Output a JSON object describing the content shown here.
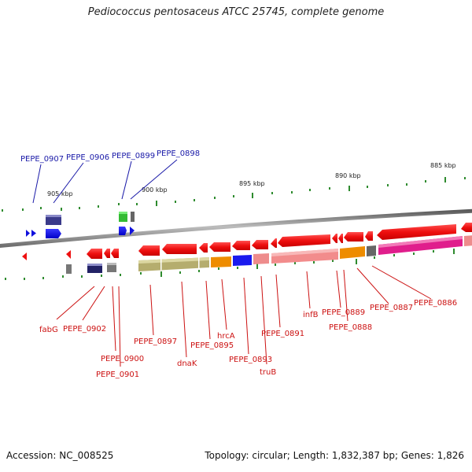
{
  "title": "Pediococcus pentosaceus ATCC 25745, complete genome",
  "footer": {
    "accession": "Accession: NC_008525",
    "summary": "Topology: circular; Length: 1,832,387 bp; Genes: 1,826"
  },
  "colors": {
    "forward_gene": "#1010dd",
    "reverse_gene": "#ee1111",
    "forward_label": "#1a1aa8",
    "reverse_label": "#cc1111",
    "tick": "#2e8b2e",
    "backbone": "#7a7a7a"
  },
  "scale_labels": [
    "905 kbp",
    "900 kbp",
    "895 kbp",
    "890 kbp",
    "885 kbp"
  ],
  "forward_labels": [
    "PEPE_0907",
    "PEPE_0906",
    "PEPE_0899",
    "PEPE_0898"
  ],
  "reverse_labels": [
    "fabG",
    "PEPE_0902",
    "PEPE_0900",
    "PEPE_0901",
    "PEPE_0897",
    "dnaK",
    "PEPE_0895",
    "hrcA",
    "PEPE_0893",
    "truB",
    "PEPE_0891",
    "infB",
    "PEPE_0889",
    "PEPE_0888",
    "PEPE_0887",
    "PEPE_0886"
  ]
}
